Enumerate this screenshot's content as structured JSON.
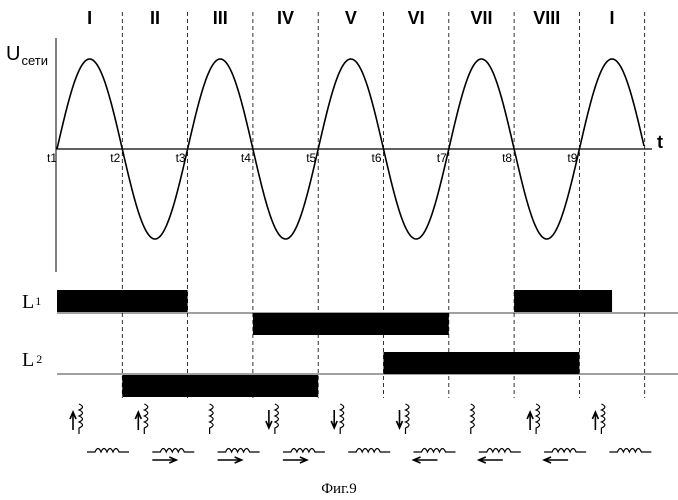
{
  "figure": {
    "caption": "Фиг.9",
    "y_axis_label": "U",
    "y_axis_subscript": "сети",
    "x_axis_label": "t",
    "intervals": [
      "I",
      "II",
      "III",
      "IV",
      "V",
      "VI",
      "VII",
      "VIII",
      "I"
    ],
    "times": [
      "t1",
      "t2",
      "t3",
      "t4",
      "t5",
      "t6",
      "t7",
      "t8",
      "t9"
    ],
    "rows": [
      {
        "label": "L",
        "subscript": "1"
      },
      {
        "label": "L",
        "subscript": "2"
      }
    ],
    "signals": {
      "L1_high": [
        [
          1,
          3
        ],
        [
          8,
          9.5
        ]
      ],
      "L1_low": [
        [
          4,
          7
        ]
      ],
      "L2_high": [
        [
          6,
          9
        ]
      ],
      "L2_low": [
        [
          2,
          5
        ]
      ]
    },
    "coil_states": [
      {
        "vertical_arrow": "up",
        "horizontal_arrow": "none"
      },
      {
        "vertical_arrow": "up",
        "horizontal_arrow": "right"
      },
      {
        "vertical_arrow": "none",
        "horizontal_arrow": "right"
      },
      {
        "vertical_arrow": "down",
        "horizontal_arrow": "right"
      },
      {
        "vertical_arrow": "down",
        "horizontal_arrow": "none"
      },
      {
        "vertical_arrow": "down",
        "horizontal_arrow": "left"
      },
      {
        "vertical_arrow": "none",
        "horizontal_arrow": "left"
      },
      {
        "vertical_arrow": "up",
        "horizontal_arrow": "left"
      },
      {
        "vertical_arrow": "up",
        "horizontal_arrow": "none"
      }
    ]
  }
}
